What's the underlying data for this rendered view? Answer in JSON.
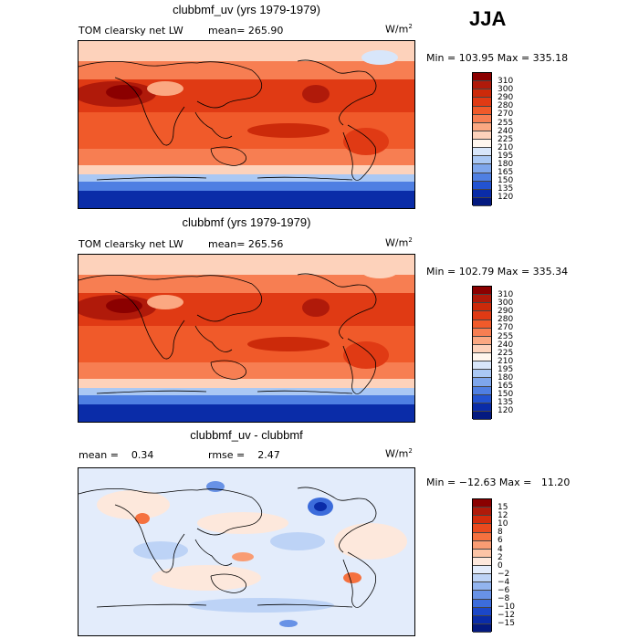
{
  "season": "JJA",
  "panels": [
    {
      "title": "clubbmf_uv (yrs 1979-1979)",
      "variable": "TOM clearsky net LW",
      "stat1": "mean= 265.90",
      "stat2": "",
      "units": "W/m",
      "units_exp": "2",
      "minmax": "Min = 103.95 Max = 335.18",
      "colorbar": {
        "labels": [
          "310",
          "300",
          "290",
          "280",
          "270",
          "255",
          "240",
          "225",
          "210",
          "195",
          "180",
          "165",
          "150",
          "135",
          "120"
        ],
        "colors": [
          "#8b0000",
          "#b01a0a",
          "#cc2a0a",
          "#e03a14",
          "#f05a2a",
          "#f77e52",
          "#fba882",
          "#fdd2bb",
          "#fff6ee",
          "#d8e6fa",
          "#aac8f4",
          "#7ea6ec",
          "#4f7fe2",
          "#2353d1",
          "#0a2ca8",
          "#041a80"
        ]
      }
    },
    {
      "title": "clubbmf (yrs 1979-1979)",
      "variable": "TOM clearsky net LW",
      "stat1": "mean= 265.56",
      "stat2": "",
      "units": "W/m",
      "units_exp": "2",
      "minmax": "Min = 102.79 Max = 335.34",
      "colorbar": {
        "labels": [
          "310",
          "300",
          "290",
          "280",
          "270",
          "255",
          "240",
          "225",
          "210",
          "195",
          "180",
          "165",
          "150",
          "135",
          "120"
        ],
        "colors": [
          "#8b0000",
          "#b01a0a",
          "#cc2a0a",
          "#e03a14",
          "#f05a2a",
          "#f77e52",
          "#fba882",
          "#fdd2bb",
          "#fff6ee",
          "#d8e6fa",
          "#aac8f4",
          "#7ea6ec",
          "#4f7fe2",
          "#2353d1",
          "#0a2ca8",
          "#041a80"
        ]
      }
    },
    {
      "title": "clubbmf_uv - clubbmf",
      "variable": "mean =    0.34",
      "stat1": "",
      "stat2": "rmse =    2.47",
      "units": "W/m",
      "units_exp": "2",
      "minmax": "Min = −12.63 Max =   11.20",
      "colorbar": {
        "labels": [
          "15",
          "12",
          "10",
          "8",
          "6",
          "4",
          "2",
          "0",
          "−2",
          "−4",
          "−6",
          "−8",
          "−10",
          "−12",
          "−15"
        ],
        "colors": [
          "#8b0000",
          "#b01a0a",
          "#d42c0c",
          "#ea4a1e",
          "#f5713f",
          "#f99c73",
          "#fcc4a6",
          "#fde8dc",
          "#e3ecfb",
          "#bdd3f6",
          "#92b4ef",
          "#6892e6",
          "#3c6cdb",
          "#1b47c8",
          "#0a2ca8",
          "#041a80"
        ]
      }
    }
  ]
}
